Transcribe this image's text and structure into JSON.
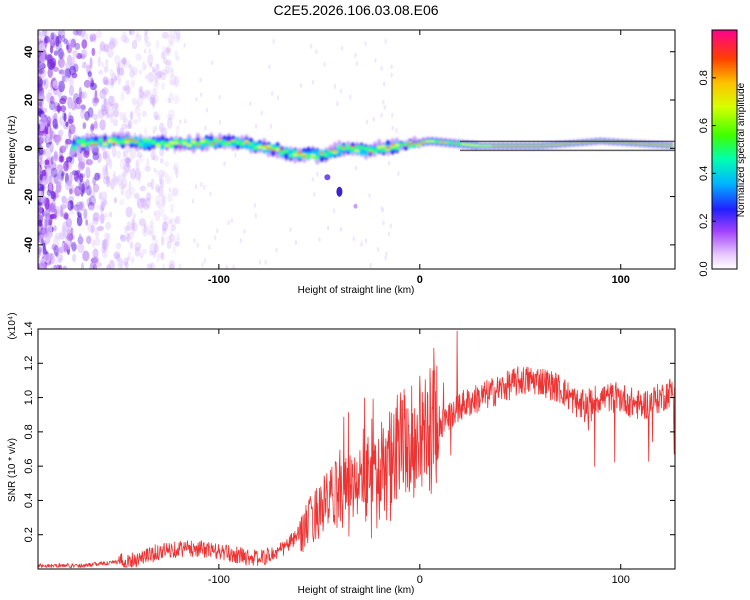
{
  "title": "C2E5.2026.106.03.08.E06",
  "colors": {
    "snr_line": "#ee3333",
    "frame": "#000000"
  },
  "chart_data": [
    {
      "type": "heatmap",
      "name": "spectrogram",
      "xlabel": "Height of straight line (km)",
      "ylabel": "Frequency (Hz)",
      "xlim": [
        -190,
        127
      ],
      "ylim": [
        -50,
        49
      ],
      "xticks": [
        -100,
        0,
        100
      ],
      "xtick_labels": [
        "-100",
        "0",
        "100"
      ],
      "yticks": [
        -40,
        -20,
        0,
        20,
        40
      ],
      "ytick_labels": [
        "-40",
        "-20",
        "0",
        "20",
        "40"
      ],
      "ridge": [
        {
          "x": -170,
          "y": 2
        },
        {
          "x": -150,
          "y": 3
        },
        {
          "x": -130,
          "y": 2
        },
        {
          "x": -110,
          "y": 2
        },
        {
          "x": -95,
          "y": 3
        },
        {
          "x": -80,
          "y": 1
        },
        {
          "x": -65,
          "y": -2
        },
        {
          "x": -50,
          "y": -3
        },
        {
          "x": -38,
          "y": 0
        },
        {
          "x": -25,
          "y": -1
        },
        {
          "x": -10,
          "y": 1
        },
        {
          "x": 5,
          "y": 3
        },
        {
          "x": 30,
          "y": 1
        },
        {
          "x": 60,
          "y": 1
        },
        {
          "x": 90,
          "y": 3
        },
        {
          "x": 127,
          "y": 1
        }
      ]
    },
    {
      "type": "colorbar",
      "name": "colorbar",
      "label": "Normalized spectral amplitude",
      "ylim": [
        0,
        1
      ],
      "ticks": [
        0.0,
        0.2,
        0.4,
        0.6,
        0.8
      ],
      "tick_labels": [
        "0.0",
        "0.2",
        "0.4",
        "0.6",
        "0.8"
      ]
    },
    {
      "type": "line",
      "name": "snr",
      "xlabel": "Height of straight line (km)",
      "ylabel": "SNR (10 * v/v)",
      "multiplier_label": "(x10⁴)",
      "xlim": [
        -190,
        127
      ],
      "ylim": [
        0,
        1.4
      ],
      "xticks": [
        -100,
        0,
        100
      ],
      "xtick_labels": [
        "-100",
        "0",
        "100"
      ],
      "yticks": [
        0.2,
        0.4,
        0.6,
        0.8,
        1.0,
        1.2,
        1.4
      ],
      "ytick_labels": [
        "0.2",
        "0.4",
        "0.6",
        "0.8",
        "1.0",
        "1.2",
        "1.4"
      ],
      "series": [
        {
          "x": [
            -190,
            -180,
            -170,
            -160,
            -150,
            -140,
            -130,
            -120,
            -110,
            -100,
            -90,
            -80,
            -70,
            -60,
            -50,
            -40,
            -30,
            -20,
            -10,
            0,
            10,
            20,
            30,
            40,
            50,
            60,
            70,
            80,
            90,
            100,
            110,
            120,
            127
          ],
          "y": [
            0.02,
            0.02,
            0.02,
            0.03,
            0.04,
            0.06,
            0.1,
            0.12,
            0.12,
            0.1,
            0.08,
            0.06,
            0.1,
            0.2,
            0.35,
            0.45,
            0.5,
            0.6,
            0.7,
            0.8,
            0.85,
            0.95,
            1.0,
            1.05,
            1.1,
            1.1,
            1.05,
            0.95,
            1.0,
            1.0,
            0.95,
            1.0,
            1.05
          ]
        }
      ]
    }
  ]
}
